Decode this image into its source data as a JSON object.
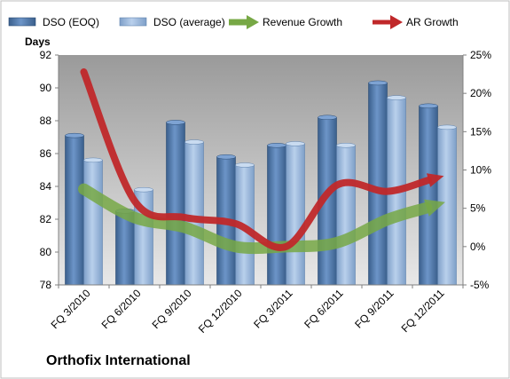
{
  "chart_data": {
    "type": "bar",
    "title": "Orthofix International",
    "ylabel": "Days",
    "categories": [
      "FQ 3/2010",
      "FQ 6/2010",
      "FQ 9/2010",
      "FQ 12/2010",
      "FQ 3/2011",
      "FQ 6/2011",
      "FQ 9/2011",
      "FQ 12/2011"
    ],
    "ylim": [
      78,
      92
    ],
    "yticks": [
      78,
      80,
      82,
      84,
      86,
      88,
      90,
      92
    ],
    "y2lim": [
      -0.05,
      0.25
    ],
    "y2ticks": [
      "-5%",
      "0%",
      "5%",
      "10%",
      "15%",
      "20%",
      "25%"
    ],
    "y2tick_values": [
      -0.05,
      0,
      0.05,
      0.1,
      0.15,
      0.2,
      0.25
    ],
    "legend_position": "top",
    "series": [
      {
        "name": "DSO (EOQ)",
        "type": "bar",
        "axis": "left",
        "color": "#4f81bd",
        "values": [
          87.1,
          82.5,
          87.9,
          85.8,
          86.5,
          88.2,
          90.3,
          88.9
        ]
      },
      {
        "name": "DSO (average)",
        "type": "bar",
        "axis": "left",
        "color": "#95b3d7",
        "values": [
          85.6,
          83.8,
          86.7,
          85.3,
          86.6,
          86.5,
          89.4,
          87.6
        ]
      },
      {
        "name": "Revenue Growth",
        "type": "line",
        "axis": "right",
        "color": "#77a845",
        "values": [
          0.075,
          0.038,
          0.025,
          0.0,
          0.0,
          0.005,
          0.035,
          0.055
        ]
      },
      {
        "name": "AR Growth",
        "type": "line",
        "axis": "right",
        "color": "#c0282a",
        "values": [
          0.228,
          0.06,
          0.038,
          0.03,
          0.0,
          0.08,
          0.072,
          0.09
        ]
      }
    ],
    "grid": false,
    "plot_background": "#c0c0c0"
  }
}
